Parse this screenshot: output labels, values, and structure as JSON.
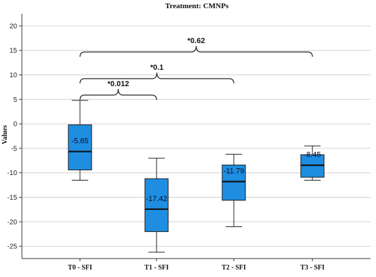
{
  "chart_data": {
    "type": "box",
    "title": "Treatment: CMNPs",
    "ylabel": "Values",
    "xlabel": "",
    "ylim": [
      -27.5,
      22.5
    ],
    "yticks": [
      20,
      15,
      10,
      5,
      0,
      -5,
      -10,
      -15,
      -20,
      -25
    ],
    "ytick_labels": [
      "20",
      "15",
      "10",
      "5",
      "0",
      "-5",
      "-10",
      "-15",
      "-20",
      "-25"
    ],
    "grid": "horizontal",
    "box_color": "#1f8ee0",
    "categories": [
      "T0 - SFI",
      "T1 - SFI",
      "T2 - SFI",
      "T3 - SFI"
    ],
    "boxes": [
      {
        "category": "T0 - SFI",
        "min": -11.5,
        "q1": -9.4,
        "median": -5.65,
        "q3": -0.2,
        "max": 4.8,
        "label": "-5.65"
      },
      {
        "category": "T1 - SFI",
        "min": -26.2,
        "q1": -22.0,
        "median": -17.42,
        "q3": -11.2,
        "max": -7.0,
        "label": "-17.42"
      },
      {
        "category": "T2 - SFI",
        "min": -21.0,
        "q1": -15.6,
        "median": -11.79,
        "q3": -8.4,
        "max": -6.2,
        "label": "-11.79"
      },
      {
        "category": "T3 - SFI",
        "min": -11.5,
        "q1": -10.9,
        "median": -8.45,
        "q3": -6.3,
        "max": -4.5,
        "label": "-8.45"
      }
    ],
    "comparisons": [
      {
        "from": "T0 - SFI",
        "to": "T1 - SFI",
        "label": "*0.012",
        "level": 1
      },
      {
        "from": "T0 - SFI",
        "to": "T2 - SFI",
        "label": "*0.1",
        "level": 2
      },
      {
        "from": "T0 - SFI",
        "to": "T3 - SFI",
        "label": "*0.62",
        "level": 3
      }
    ]
  }
}
